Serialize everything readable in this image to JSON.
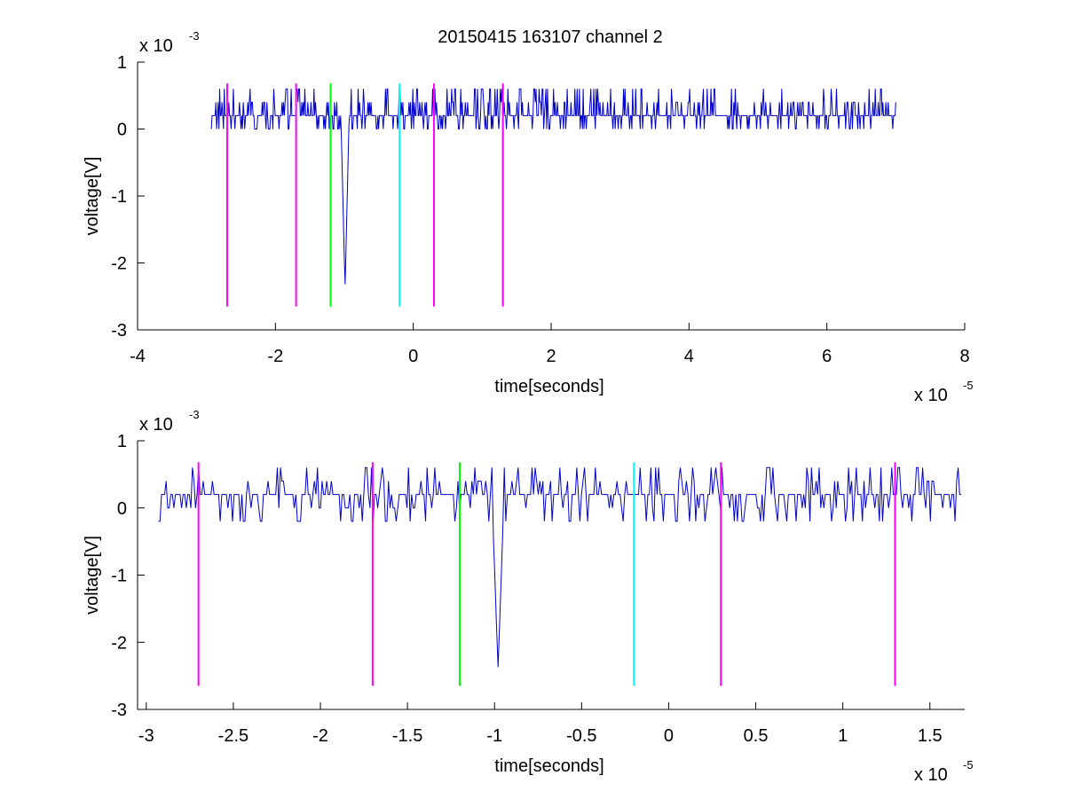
{
  "figure": {
    "title": "20150415 163107 channel 2",
    "background": "#ffffff",
    "axis_color": "#000000",
    "trace_color": "#0000cc"
  },
  "chart_data": [
    {
      "type": "line",
      "title": "20150415 163107 channel 2",
      "xlabel": "time[seconds]",
      "ylabel": "voltage[V]",
      "x_multiplier": "x 10",
      "x_exponent": "-5",
      "y_multiplier": "x 10",
      "y_exponent": "-3",
      "xlim": [
        -4,
        8
      ],
      "ylim": [
        -3,
        1
      ],
      "xticks": [
        -4,
        -2,
        0,
        2,
        4,
        6,
        8
      ],
      "yticks": [
        -3,
        -2,
        -1,
        0,
        1
      ],
      "grid": false,
      "series": [
        {
          "color": "#0000cc",
          "x_start": -2.93,
          "x_end": 7.0,
          "baseline": 0.2,
          "noise_levels": [
            0.0,
            0.2,
            0.4,
            0.6
          ],
          "spike": {
            "x": -0.99,
            "y": -2.4
          }
        }
      ],
      "markers": [
        {
          "x": -2.7,
          "y_top": 0.68,
          "y_bottom": -2.65,
          "color": "#ff00ff"
        },
        {
          "x": -1.7,
          "y_top": 0.68,
          "y_bottom": -2.65,
          "color": "#ff00ff"
        },
        {
          "x": -1.2,
          "y_top": 0.68,
          "y_bottom": -2.65,
          "color": "#00ff00"
        },
        {
          "x": -0.2,
          "y_top": 0.68,
          "y_bottom": -2.65,
          "color": "#00ffff"
        },
        {
          "x": 0.3,
          "y_top": 0.68,
          "y_bottom": -2.65,
          "color": "#ff00ff"
        },
        {
          "x": 1.3,
          "y_top": 0.68,
          "y_bottom": -2.65,
          "color": "#ff00ff"
        }
      ]
    },
    {
      "type": "line",
      "title": "",
      "xlabel": "time[seconds]",
      "ylabel": "voltage[V]",
      "x_multiplier": "x 10",
      "x_exponent": "-5",
      "y_multiplier": "x 10",
      "y_exponent": "-3",
      "xlim": [
        -3.05,
        1.7
      ],
      "ylim": [
        -3,
        1
      ],
      "xticks": [
        -3,
        -2.5,
        -2,
        -1.5,
        -1,
        -0.5,
        0,
        0.5,
        1,
        1.5
      ],
      "yticks": [
        -3,
        -2,
        -1,
        0,
        1
      ],
      "grid": false,
      "series": [
        {
          "color": "#0000cc",
          "x_start": -2.93,
          "x_end": 1.68,
          "baseline": 0.2,
          "noise_levels": [
            -0.2,
            0.0,
            0.2,
            0.4,
            0.6
          ],
          "spike": {
            "x": -0.98,
            "y": -2.4
          }
        }
      ],
      "markers": [
        {
          "x": -2.7,
          "y_top": 0.68,
          "y_bottom": -2.65,
          "color": "#ff00ff"
        },
        {
          "x": -1.7,
          "y_top": 0.68,
          "y_bottom": -2.65,
          "color": "#ff00ff"
        },
        {
          "x": -1.2,
          "y_top": 0.68,
          "y_bottom": -2.65,
          "color": "#00ff00"
        },
        {
          "x": -0.2,
          "y_top": 0.68,
          "y_bottom": -2.65,
          "color": "#00ffff"
        },
        {
          "x": 0.3,
          "y_top": 0.68,
          "y_bottom": -2.65,
          "color": "#ff00ff"
        },
        {
          "x": 1.3,
          "y_top": 0.68,
          "y_bottom": -2.65,
          "color": "#ff00ff"
        }
      ]
    }
  ]
}
